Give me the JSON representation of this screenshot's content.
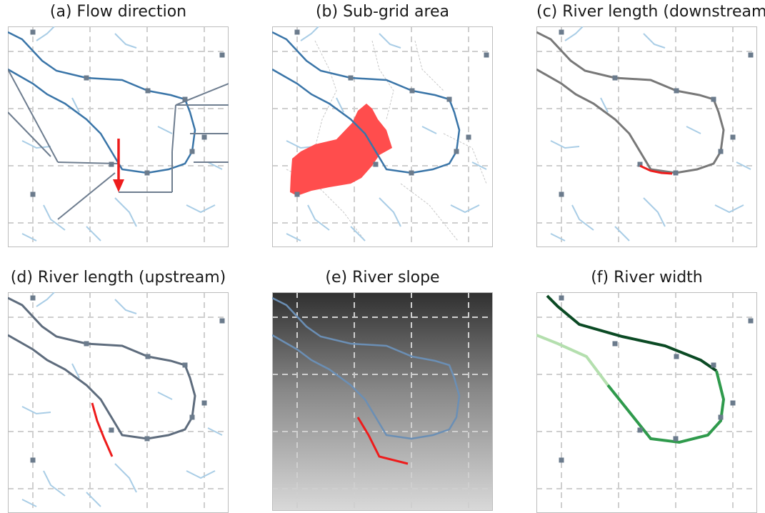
{
  "panels": [
    {
      "id": "a",
      "title": "(a) Flow direction"
    },
    {
      "id": "b",
      "title": "(b) Sub-grid area"
    },
    {
      "id": "c",
      "title": "(c) River length (downstream)"
    },
    {
      "id": "d",
      "title": "(d) River length (upstream)"
    },
    {
      "id": "e",
      "title": "(e) River slope"
    },
    {
      "id": "f",
      "title": "(f)  River width"
    }
  ],
  "colors": {
    "grid": "#cfcfcf",
    "frame": "#bdbdbd",
    "minor_river": "#a9cde6",
    "main_river": "#3a75a8",
    "arrow": "#1f63a8",
    "flow_vector": "#6e7d8f",
    "cell_outlet": "#6b7b8c",
    "highlight": "#ee1c1c",
    "subgrid_area": "#ff4d4d",
    "downstream_path": "#787878",
    "upstream_path": "#5e6c7d",
    "river_width_dark": "#0b4a24",
    "river_width_mid": "#2f9a4c",
    "river_width_light": "#b4dfae"
  }
}
